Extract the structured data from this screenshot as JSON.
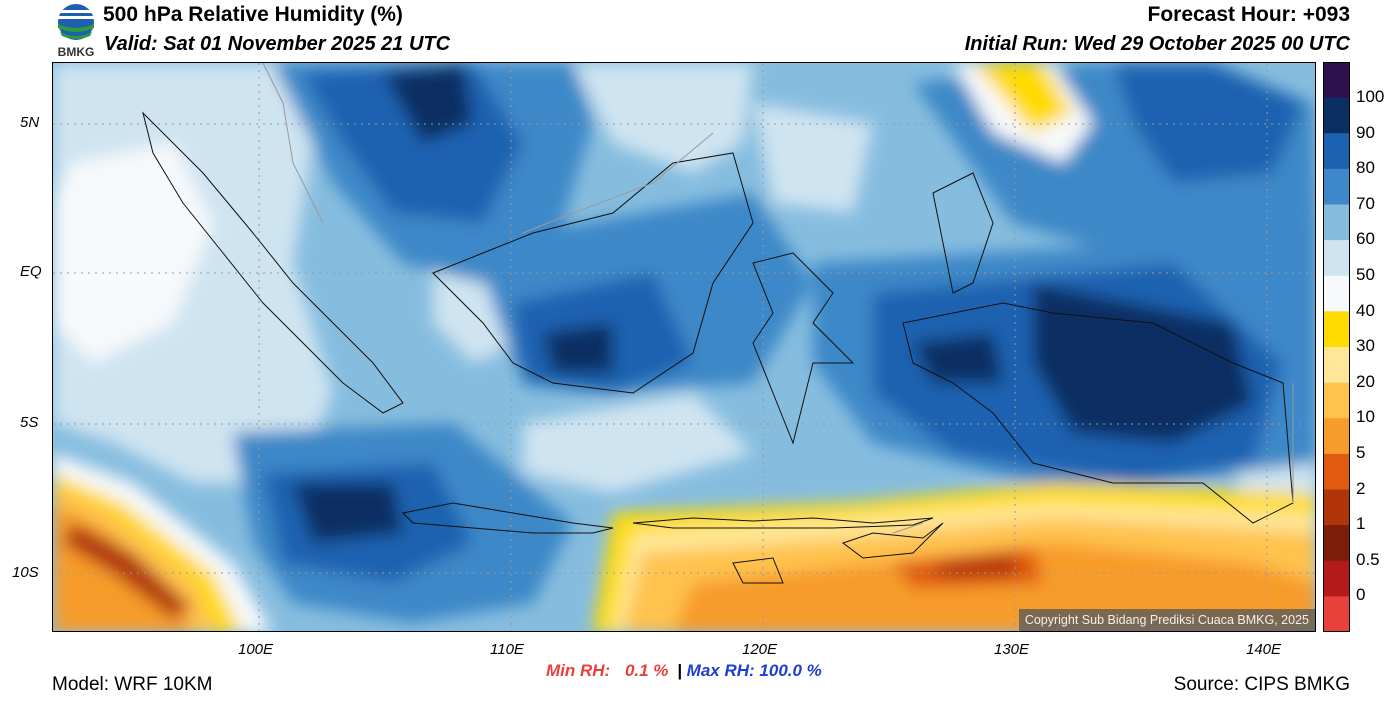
{
  "header": {
    "title": "500 hPa Relative Humidity (%)",
    "valid": "Valid: Sat 01 November 2025 21 UTC",
    "forecast_hour": "Forecast Hour: +093",
    "initial_run": "Initial Run: Wed 29 October 2025 00 UTC",
    "logo_text": "BMKG"
  },
  "axes": {
    "lon_labels": [
      "100E",
      "110E",
      "120E",
      "130E",
      "140E"
    ],
    "lat_labels": [
      "5N",
      "EQ",
      "5S",
      "10S"
    ]
  },
  "colorbar": {
    "labels": [
      "100",
      "90",
      "80",
      "70",
      "60",
      "50",
      "40",
      "30",
      "20",
      "10",
      "5",
      "2",
      "1",
      "0.5",
      "0"
    ],
    "colors": [
      "#2e0f4f",
      "#0b2f63",
      "#1d62b0",
      "#3d88c8",
      "#86bddf",
      "#cfe4f1",
      "#f7f9fb",
      "#ffdb00",
      "#ffe79a",
      "#ffc24d",
      "#f79b2a",
      "#e05a10",
      "#b0360a",
      "#7c1e0a",
      "#b41a1a",
      "#e8413c"
    ]
  },
  "map": {
    "copyright": "Copyright Sub Bidang Prediksi Cuaca BMKG, 2025"
  },
  "footer": {
    "model": "Model: WRF 10KM",
    "source": "Source: CIPS BMKG",
    "min_label": "Min RH:",
    "min_value": "0.1 %",
    "separator": "|",
    "max_label": "Max RH:",
    "max_value": "100.0 %"
  }
}
